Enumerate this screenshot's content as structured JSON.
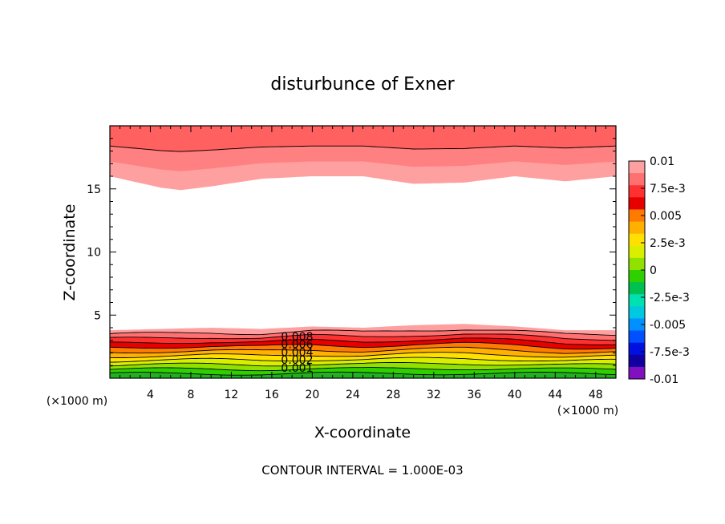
{
  "chart_data": {
    "type": "heatmap",
    "subtype": "filled-contour",
    "title": "disturbunce of Exner",
    "xlabel": "X-coordinate",
    "ylabel": "Z-coordinate",
    "x_unit_label_left": "(×1000 m)",
    "x_unit_label_right": "(×1000 m)",
    "footer": "CONTOUR INTERVAL = 1.000E-03",
    "xlim": [
      0,
      50
    ],
    "ylim": [
      0,
      20
    ],
    "x_ticks": [
      4,
      8,
      12,
      16,
      20,
      24,
      28,
      32,
      36,
      40,
      44,
      48
    ],
    "y_ticks": [
      5,
      10,
      15
    ],
    "x_tick_labels": [
      "4",
      "8",
      "12",
      "16",
      "20",
      "24",
      "28",
      "32",
      "36",
      "40",
      "44",
      "48"
    ],
    "y_tick_labels": [
      "5",
      "10",
      "15"
    ],
    "contour_interval": 0.001,
    "contour_labels": [
      "0.008",
      "0.006",
      "0.004",
      "0.002",
      "0.001"
    ],
    "colorbar": {
      "range": [
        -0.01,
        0.01
      ],
      "tick_values": [
        0.01,
        0.0075,
        0.005,
        0.0025,
        0,
        -0.0025,
        -0.005,
        -0.0075,
        -0.01
      ],
      "tick_labels": [
        "0.01",
        "7.5e-3",
        "0.005",
        "2.5e-3",
        "0",
        "-2.5e-3",
        "-0.005",
        "-7.5e-3",
        "-0.01"
      ],
      "colors_top_to_bottom": [
        "#ffa0a0",
        "#ff7070",
        "#ff3030",
        "#e60000",
        "#ff7a00",
        "#ffb000",
        "#ffe000",
        "#d8f000",
        "#90e000",
        "#30d000",
        "#00c050",
        "#00e0b0",
        "#00c8e0",
        "#0090ff",
        "#0050ff",
        "#0010e0",
        "#1000a0",
        "#8010c0"
      ]
    },
    "bottom_layer": {
      "x": [
        0,
        5,
        10,
        15,
        20,
        25,
        30,
        35,
        40,
        45,
        50
      ],
      "top_height": [
        3.8,
        3.9,
        4.0,
        3.9,
        4.1,
        4.0,
        4.2,
        4.3,
        4.1,
        3.8,
        3.8
      ],
      "bands": [
        {
          "level": 0.0095,
          "color": "#ffa0a0"
        },
        {
          "level": 0.009,
          "color": "#ff7070"
        },
        {
          "level": 0.0085,
          "color": "#ff3030"
        },
        {
          "level": 0.008,
          "color": "#e60000"
        },
        {
          "level": 0.007,
          "color": "#ff7a00"
        },
        {
          "level": 0.006,
          "color": "#ffb000"
        },
        {
          "level": 0.005,
          "color": "#ffe000"
        },
        {
          "level": 0.004,
          "color": "#d8f000"
        },
        {
          "level": 0.003,
          "color": "#90e000"
        },
        {
          "level": 0.002,
          "color": "#30d000"
        },
        {
          "level": 0.001,
          "color": "#20b020"
        }
      ]
    },
    "top_layer": {
      "x": [
        0,
        5,
        7,
        10,
        15,
        20,
        25,
        30,
        35,
        40,
        45,
        50
      ],
      "bottom_height": [
        16.0,
        15.1,
        14.9,
        15.2,
        15.8,
        16.0,
        16.0,
        15.4,
        15.5,
        16.0,
        15.6,
        16.0
      ],
      "bands": [
        {
          "level": 0.0095,
          "color": "#ffa0a0"
        },
        {
          "level": 0.0098,
          "color": "#ff8080"
        },
        {
          "level": 0.01,
          "color": "#ff6060"
        }
      ]
    }
  }
}
